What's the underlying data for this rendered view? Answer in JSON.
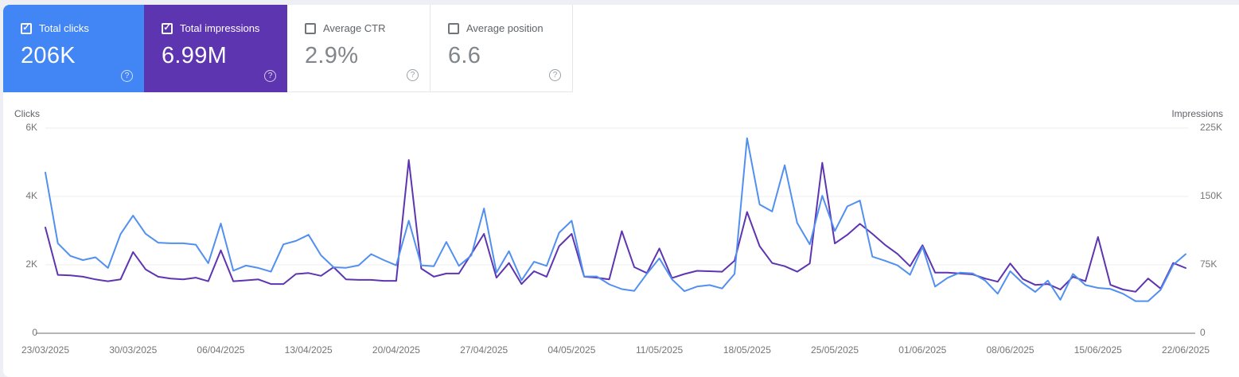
{
  "icons": {
    "check": "✓",
    "help": "?"
  },
  "colors": {
    "page_bg": "#edeff4",
    "clicks_card_bg": "#4285f4",
    "impressions_card_bg": "#5e35b1",
    "clicks_line": "#5290f0",
    "impressions_line": "#5e35b1",
    "unselected_value_text": "#80868b",
    "axis_text": "#757575"
  },
  "cards": [
    {
      "label": "Total clicks",
      "value": "206K",
      "checked": true,
      "bg": "#4285f4"
    },
    {
      "label": "Total impressions",
      "value": "6.99M",
      "checked": true,
      "bg": "#5e35b1"
    },
    {
      "label": "Average CTR",
      "value": "2.9%",
      "checked": false,
      "bg": "#ffffff"
    },
    {
      "label": "Average position",
      "value": "6.6",
      "checked": false,
      "bg": "#ffffff"
    }
  ],
  "chart_data": {
    "type": "line",
    "x_start_date": "23/03/2025",
    "x_end_date": "22/06/2025",
    "points_per_series": 92,
    "grid": "horizontal-only",
    "x_tick_labels": [
      "23/03/2025",
      "30/03/2025",
      "06/04/2025",
      "13/04/2025",
      "20/04/2025",
      "27/04/2025",
      "04/05/2025",
      "11/05/2025",
      "18/05/2025",
      "25/05/2025",
      "01/06/2025",
      "08/06/2025",
      "15/06/2025",
      "22/06/2025"
    ],
    "left_axis": {
      "title": "Clicks",
      "min": 0,
      "max": 6000,
      "ticks": [
        {
          "value": 0,
          "label": "0"
        },
        {
          "value": 2000,
          "label": "2K"
        },
        {
          "value": 4000,
          "label": "4K"
        },
        {
          "value": 6000,
          "label": "6K"
        }
      ]
    },
    "right_axis": {
      "title": "Impressions",
      "min": 0,
      "max": 225000,
      "ticks": [
        {
          "value": 0,
          "label": "0"
        },
        {
          "value": 75000,
          "label": "75K"
        },
        {
          "value": 150000,
          "label": "150K"
        },
        {
          "value": 225000,
          "label": "225K"
        }
      ]
    },
    "series": [
      {
        "name": "Clicks",
        "axis": "left",
        "color": "#5290f0",
        "values": [
          4700,
          2630,
          2260,
          2140,
          2220,
          1910,
          2900,
          3440,
          2910,
          2650,
          2630,
          2630,
          2590,
          2050,
          3210,
          1830,
          1980,
          1910,
          1800,
          2600,
          2700,
          2880,
          2280,
          1930,
          1915,
          1985,
          2315,
          2140,
          1985,
          3290,
          1985,
          1960,
          2670,
          1970,
          2280,
          3650,
          1775,
          2400,
          1550,
          2090,
          1970,
          2940,
          3290,
          1660,
          1660,
          1430,
          1290,
          1240,
          1740,
          2190,
          1580,
          1230,
          1365,
          1410,
          1310,
          1735,
          5705,
          3765,
          3560,
          4915,
          3225,
          2600,
          4020,
          2990,
          3710,
          3880,
          2240,
          2120,
          1985,
          1710,
          2525,
          1365,
          1620,
          1775,
          1750,
          1540,
          1155,
          1815,
          1465,
          1210,
          1540,
          980,
          1735,
          1410,
          1325,
          1295,
          1155,
          940,
          940,
          1270,
          2000,
          2315
        ]
      },
      {
        "name": "Impressions",
        "axis": "right",
        "color": "#5e35b1",
        "values": [
          116000,
          64000,
          63500,
          62000,
          59000,
          57000,
          59000,
          89000,
          70000,
          62000,
          60000,
          59000,
          61000,
          57000,
          91000,
          57000,
          58000,
          59000,
          54000,
          54000,
          65000,
          66000,
          63000,
          72500,
          59000,
          58500,
          58500,
          57500,
          57500,
          190000,
          71000,
          62000,
          65500,
          65500,
          87000,
          109000,
          61000,
          77000,
          54000,
          68000,
          62000,
          95500,
          109000,
          62000,
          61000,
          59000,
          112000,
          72500,
          66000,
          93000,
          60500,
          65000,
          68500,
          68000,
          67500,
          79500,
          133000,
          95500,
          77000,
          73500,
          67500,
          76500,
          187000,
          98500,
          108000,
          120000,
          109000,
          97000,
          87000,
          73500,
          96500,
          66500,
          66500,
          65500,
          64500,
          60000,
          56500,
          76500,
          59500,
          53000,
          54000,
          48000,
          62000,
          57000,
          105500,
          53000,
          48000,
          45500,
          60000,
          49000,
          77000,
          71500
        ]
      }
    ]
  }
}
